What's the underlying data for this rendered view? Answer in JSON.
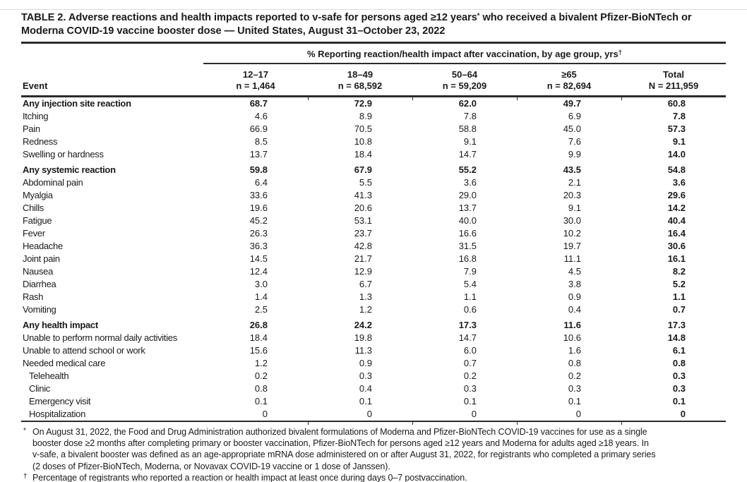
{
  "title": {
    "line1_pre": "TABLE 2. Adverse reactions and health impacts reported to v-safe for persons aged ≥12 years",
    "line1_sup": "*",
    "line1_post": " who received a bivalent Pfizer-BioNTech or",
    "line2": "Moderna COVID-19 vaccine booster dose — United States, August 31–October 23, 2022"
  },
  "table": {
    "spanner_label": "% Reporting reaction/health impact after vaccination, by age group, yrs",
    "spanner_sup": "†",
    "event_header": "Event",
    "columns": [
      {
        "age": "12–17",
        "n": "n = 1,464"
      },
      {
        "age": "18–49",
        "n": "n = 68,592"
      },
      {
        "age": "50–64",
        "n": "n = 59,209"
      },
      {
        "age": "≥65",
        "n": "n = 82,694"
      },
      {
        "age": "Total",
        "n": "N = 211,959"
      }
    ],
    "rows": [
      {
        "label": "Any injection site reaction",
        "values": [
          "68.7",
          "72.9",
          "62.0",
          "49.7",
          "60.8"
        ],
        "bold": true,
        "indent": false,
        "section_gap": false
      },
      {
        "label": "Itching",
        "values": [
          "4.6",
          "8.9",
          "7.8",
          "6.9",
          "7.8"
        ],
        "bold": false,
        "indent": false,
        "section_gap": false
      },
      {
        "label": "Pain",
        "values": [
          "66.9",
          "70.5",
          "58.8",
          "45.0",
          "57.3"
        ],
        "bold": false,
        "indent": false,
        "section_gap": false
      },
      {
        "label": "Redness",
        "values": [
          "8.5",
          "10.8",
          "9.1",
          "7.6",
          "9.1"
        ],
        "bold": false,
        "indent": false,
        "section_gap": false
      },
      {
        "label": "Swelling or hardness",
        "values": [
          "13.7",
          "18.4",
          "14.7",
          "9.9",
          "14.0"
        ],
        "bold": false,
        "indent": false,
        "section_gap": false
      },
      {
        "label": "Any systemic reaction",
        "values": [
          "59.8",
          "67.9",
          "55.2",
          "43.5",
          "54.8"
        ],
        "bold": true,
        "indent": false,
        "section_gap": true
      },
      {
        "label": "Abdominal pain",
        "values": [
          "6.4",
          "5.5",
          "3.6",
          "2.1",
          "3.6"
        ],
        "bold": false,
        "indent": false,
        "section_gap": false
      },
      {
        "label": "Myalgia",
        "values": [
          "33.6",
          "41.3",
          "29.0",
          "20.3",
          "29.6"
        ],
        "bold": false,
        "indent": false,
        "section_gap": false
      },
      {
        "label": "Chills",
        "values": [
          "19.6",
          "20.6",
          "13.7",
          "9.1",
          "14.2"
        ],
        "bold": false,
        "indent": false,
        "section_gap": false
      },
      {
        "label": "Fatigue",
        "values": [
          "45.2",
          "53.1",
          "40.0",
          "30.0",
          "40.4"
        ],
        "bold": false,
        "indent": false,
        "section_gap": false
      },
      {
        "label": "Fever",
        "values": [
          "26.3",
          "23.7",
          "16.6",
          "10.2",
          "16.4"
        ],
        "bold": false,
        "indent": false,
        "section_gap": false
      },
      {
        "label": "Headache",
        "values": [
          "36.3",
          "42.8",
          "31.5",
          "19.7",
          "30.6"
        ],
        "bold": false,
        "indent": false,
        "section_gap": false
      },
      {
        "label": "Joint pain",
        "values": [
          "14.5",
          "21.7",
          "16.8",
          "11.1",
          "16.1"
        ],
        "bold": false,
        "indent": false,
        "section_gap": false
      },
      {
        "label": "Nausea",
        "values": [
          "12.4",
          "12.9",
          "7.9",
          "4.5",
          "8.2"
        ],
        "bold": false,
        "indent": false,
        "section_gap": false
      },
      {
        "label": "Diarrhea",
        "values": [
          "3.0",
          "6.7",
          "5.4",
          "3.8",
          "5.2"
        ],
        "bold": false,
        "indent": false,
        "section_gap": false
      },
      {
        "label": "Rash",
        "values": [
          "1.4",
          "1.3",
          "1.1",
          "0.9",
          "1.1"
        ],
        "bold": false,
        "indent": false,
        "section_gap": false
      },
      {
        "label": "Vomiting",
        "values": [
          "2.5",
          "1.2",
          "0.6",
          "0.4",
          "0.7"
        ],
        "bold": false,
        "indent": false,
        "section_gap": false
      },
      {
        "label": "Any health impact",
        "values": [
          "26.8",
          "24.2",
          "17.3",
          "11.6",
          "17.3"
        ],
        "bold": true,
        "indent": false,
        "section_gap": true
      },
      {
        "label": "Unable to perform normal daily activities",
        "values": [
          "18.4",
          "19.8",
          "14.7",
          "10.6",
          "14.8"
        ],
        "bold": false,
        "indent": false,
        "section_gap": false
      },
      {
        "label": "Unable to attend school or work",
        "values": [
          "15.6",
          "11.3",
          "6.0",
          "1.6",
          "6.1"
        ],
        "bold": false,
        "indent": false,
        "section_gap": false
      },
      {
        "label": "Needed medical care",
        "values": [
          "1.2",
          "0.9",
          "0.7",
          "0.8",
          "0.8"
        ],
        "bold": false,
        "indent": false,
        "section_gap": false
      },
      {
        "label": "Telehealth",
        "values": [
          "0.2",
          "0.3",
          "0.2",
          "0.2",
          "0.3"
        ],
        "bold": false,
        "indent": true,
        "section_gap": false
      },
      {
        "label": "Clinic",
        "values": [
          "0.8",
          "0.4",
          "0.3",
          "0.3",
          "0.3"
        ],
        "bold": false,
        "indent": true,
        "section_gap": false
      },
      {
        "label": "Emergency visit",
        "values": [
          "0.1",
          "0.1",
          "0.1",
          "0.1",
          "0.1"
        ],
        "bold": false,
        "indent": true,
        "section_gap": false
      },
      {
        "label": "Hospitalization",
        "values": [
          "0",
          "0",
          "0",
          "0",
          "0"
        ],
        "bold": false,
        "indent": true,
        "section_gap": false
      }
    ]
  },
  "footnotes": {
    "star_marker": "*",
    "star_lines": [
      "On August 31, 2022, the Food and Drug Administration authorized bivalent formulations of Moderna and Pfizer-BioNTech COVID-19 vaccines for use as a single",
      "booster dose ≥2 months after completing primary or booster vaccination, Pfizer-BioNTech for persons aged ≥12 years and Moderna for adults aged ≥18 years. In",
      "v-safe, a bivalent booster was defined as an age-appropriate mRNA dose administered on or after August 31, 2022, for registrants who completed a primary series",
      "(2 doses of Pfizer-BioNTech, Moderna, or Novavax COVID-19 vaccine or 1 dose of Janssen)."
    ],
    "dagger_marker": "†",
    "dagger_line": "Percentage of registrants who reported a reaction or health impact at least once during days 0–7 postvaccination."
  },
  "colors": {
    "text": "#1a1a1a",
    "rule": "#2b2b2b"
  }
}
